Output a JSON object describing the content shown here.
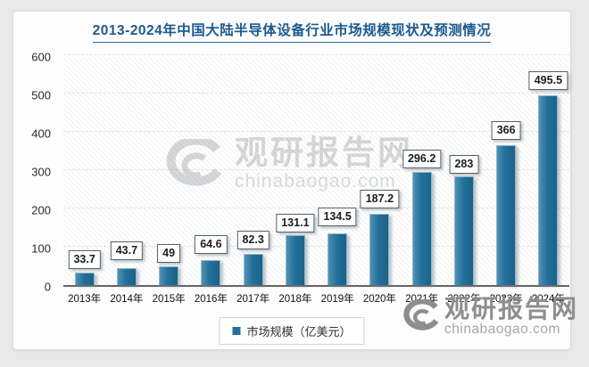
{
  "header": {
    "title": "2013-2024年中国大陆半导体设备行业市场规模现状及预测情况",
    "title_color": "#1c5a8e"
  },
  "chart_data": {
    "type": "bar",
    "title": "2013-2024年中国大陆半导体设备行业市场规模现状及预测情况",
    "categories": [
      "2013年",
      "2014年",
      "2015年",
      "2016年",
      "2017年",
      "2018年",
      "2019年",
      "2020年",
      "2021年",
      "2022年",
      "2023年",
      "2024年"
    ],
    "values": [
      33.7,
      43.7,
      49,
      64.6,
      82.3,
      131.1,
      134.5,
      187.2,
      296.2,
      283,
      366,
      495.5
    ],
    "xlabel": "",
    "ylabel": "",
    "ylim": [
      0,
      600
    ],
    "ytick_interval": 100,
    "grid": true,
    "legend": "市场规模（亿美元）",
    "legend_position": "bottom",
    "bar_color": "#21719c"
  },
  "watermark_center": {
    "brand": "观研报告网",
    "domain": "chinabaogao.com"
  },
  "watermark_corner": {
    "brand": "观研报告网",
    "domain": "chinabaogao.com"
  },
  "icons": {
    "swirl": "swirl-logo-icon"
  }
}
